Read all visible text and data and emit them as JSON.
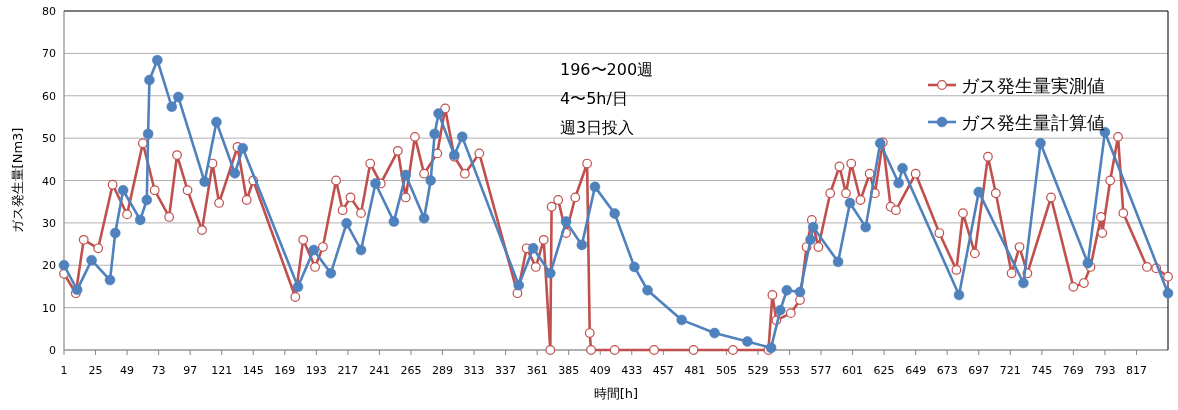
{
  "chart_data": {
    "type": "line",
    "xlabel": "時間[h]",
    "ylabel": "ガス発生量[Nm3]",
    "annotations": [
      "196〜200週",
      "4〜5h/日",
      "週3日投入"
    ],
    "xlim": [
      1,
      841
    ],
    "xticks": [
      1,
      25,
      49,
      73,
      97,
      121,
      145,
      169,
      193,
      217,
      241,
      265,
      289,
      313,
      337,
      361,
      385,
      409,
      433,
      457,
      481,
      505,
      529,
      553,
      577,
      601,
      625,
      649,
      673,
      697,
      721,
      745,
      769,
      793,
      817
    ],
    "ylim": [
      0,
      80
    ],
    "yticks": [
      0,
      10,
      20,
      30,
      40,
      50,
      60,
      70,
      80
    ],
    "grid": "y",
    "legend": "top right",
    "marker": "circle",
    "line_style": "solid",
    "series": [
      {
        "name": "ガス発生量実測値",
        "color": "#c0504d",
        "x": [
          1,
          10,
          16,
          27,
          38,
          49,
          61,
          70,
          81,
          87,
          95,
          106,
          114,
          119,
          133,
          140,
          145,
          177,
          183,
          192,
          198,
          208,
          213,
          219,
          227,
          234,
          242,
          255,
          261,
          268,
          275,
          285,
          291,
          298,
          306,
          317,
          346,
          353,
          360,
          366,
          371,
          372,
          377,
          383,
          390,
          399,
          401,
          402,
          420,
          450,
          480,
          510,
          537,
          540,
          543,
          554,
          561,
          566,
          570,
          575,
          584,
          591,
          596,
          600,
          607,
          614,
          618,
          624,
          630,
          634,
          649,
          667,
          680,
          685,
          694,
          704,
          710,
          722,
          728,
          734,
          752,
          769,
          777,
          782,
          790,
          791,
          797,
          803,
          807,
          825,
          832,
          841
        ],
        "values": [
          18,
          13.4,
          26,
          24,
          39,
          32,
          48.8,
          37.7,
          31.4,
          46,
          37.7,
          28.3,
          44,
          34.7,
          47.9,
          35.4,
          40,
          12.5,
          26,
          19.6,
          24.3,
          40,
          33,
          36,
          32.3,
          44,
          39.3,
          47,
          36,
          50.3,
          41.6,
          46.4,
          57,
          45.6,
          41.6,
          46.4,
          13.4,
          24,
          19.6,
          26,
          0,
          33.8,
          35.4,
          27.6,
          36,
          44,
          4,
          0,
          0,
          0,
          0,
          0,
          0,
          13,
          7,
          8.7,
          11.8,
          24.3,
          30.7,
          24.3,
          37,
          43.3,
          37,
          44,
          35.4,
          41.6,
          37,
          49,
          33.8,
          33,
          41.6,
          27.6,
          18.9,
          32.3,
          22.8,
          45.6,
          37,
          18.1,
          24.3,
          18.1,
          36,
          14.9,
          15.8,
          19.6,
          31.4,
          27.6,
          40,
          50.3,
          32.3,
          19.6,
          19.3,
          17.3
        ]
      },
      {
        "name": "ガス発生量計算値",
        "color": "#4f81bd",
        "x": [
          1,
          11,
          22,
          36,
          40,
          46,
          59,
          64,
          65,
          66,
          72,
          83,
          88,
          108,
          117,
          131,
          137,
          179,
          191,
          204,
          216,
          227,
          238,
          252,
          261,
          275,
          280,
          283,
          286,
          298,
          304,
          347,
          358,
          371,
          383,
          395,
          405,
          420,
          435,
          445,
          471,
          496,
          521,
          539,
          546,
          551,
          561,
          569,
          571,
          590,
          599,
          611,
          622,
          636,
          639,
          682,
          697,
          731,
          744,
          780,
          793,
          841
        ],
        "values": [
          20,
          14.2,
          21.2,
          16.5,
          27.6,
          37.7,
          30.7,
          35.4,
          51,
          63.7,
          68.4,
          57.4,
          59.7,
          39.7,
          53.8,
          41.7,
          47.6,
          14.9,
          23.6,
          18.1,
          29.9,
          23.6,
          39.3,
          30.3,
          41.3,
          31.1,
          40,
          51,
          55.8,
          46,
          50.3,
          15.3,
          24,
          18.1,
          30.3,
          24.8,
          38.5,
          32.2,
          19.6,
          14.1,
          7.1,
          4,
          2,
          0.5,
          9.4,
          14.1,
          13.7,
          26,
          29,
          20.8,
          34.7,
          29,
          48.8,
          39.4,
          42.9,
          13,
          37.3,
          15.8,
          48.8,
          20.5,
          51.4,
          13.4
        ]
      }
    ]
  }
}
